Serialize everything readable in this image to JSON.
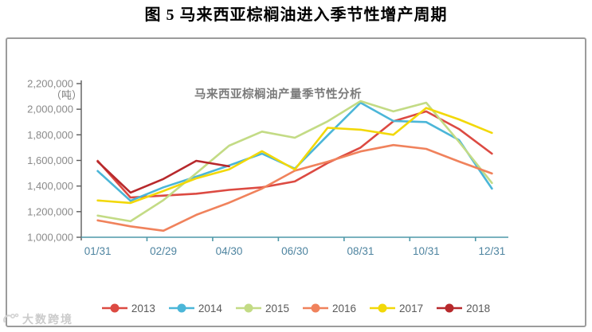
{
  "page_title": "图 5 马来西亚棕榈油进入季节性增产周期",
  "watermark": {
    "text": "大数跨境",
    "logo": "brand-logo"
  },
  "chart": {
    "title": "马来西亚棕榈油产量季节性分析",
    "unit_label": "（吨）"
  },
  "chart_data": {
    "type": "line",
    "title": "马来西亚棕榈油产量季节性分析",
    "ylabel": "吨",
    "ylim": [
      1000000,
      2200000
    ],
    "ytick_step": 200000,
    "ytick_labels": [
      "1,000,000",
      "1,200,000",
      "1,400,000",
      "1,600,000",
      "1,800,000",
      "2,000,000",
      "2,200,000"
    ],
    "x_slots": 13,
    "x_labels": [
      "01/31",
      "02/29",
      "04/30",
      "06/30",
      "08/31",
      "10/31",
      "12/31"
    ],
    "x_label_slots": [
      0,
      2,
      4,
      6,
      8,
      10,
      12
    ],
    "grid": false,
    "legend_position": "bottom",
    "axis_color": "#4e98a8",
    "yaxis_color": "#5c5c5c",
    "xlabel_color": "#4e84a0",
    "ylabel_color": "#8a8a8a",
    "series": [
      {
        "name": "2013",
        "color": "#dc4a42",
        "values": [
          1597000,
          1310000,
          1325000,
          1340000,
          1370000,
          1390000,
          1436000,
          1580000,
          1700000,
          1905000,
          1983000,
          1845000,
          1653000
        ]
      },
      {
        "name": "2014",
        "color": "#4bb6d8",
        "values": [
          1517000,
          1285000,
          1390000,
          1473000,
          1560000,
          1653000,
          1536000,
          1795000,
          2051000,
          1908000,
          1900000,
          1759000,
          1380000
        ]
      },
      {
        "name": "2015",
        "color": "#c3db85",
        "values": [
          1169000,
          1125000,
          1290000,
          1500000,
          1715000,
          1825000,
          1777000,
          1905000,
          2063000,
          1983000,
          2051000,
          1745000,
          1424000
        ]
      },
      {
        "name": "2016",
        "color": "#f0825c",
        "values": [
          1132000,
          1085000,
          1051000,
          1175000,
          1270000,
          1380000,
          1520000,
          1590000,
          1670000,
          1720000,
          1690000,
          1591000,
          1498000
        ]
      },
      {
        "name": "2017",
        "color": "#f2d808",
        "values": [
          1287000,
          1268000,
          1361000,
          1460000,
          1530000,
          1672000,
          1529000,
          1855000,
          1840000,
          1800000,
          2010000,
          1920000,
          1815000
        ]
      },
      {
        "name": "2018",
        "color": "#b7292c",
        "values": [
          1591000,
          1349000,
          1455000,
          1597000,
          1554000
        ]
      }
    ]
  }
}
